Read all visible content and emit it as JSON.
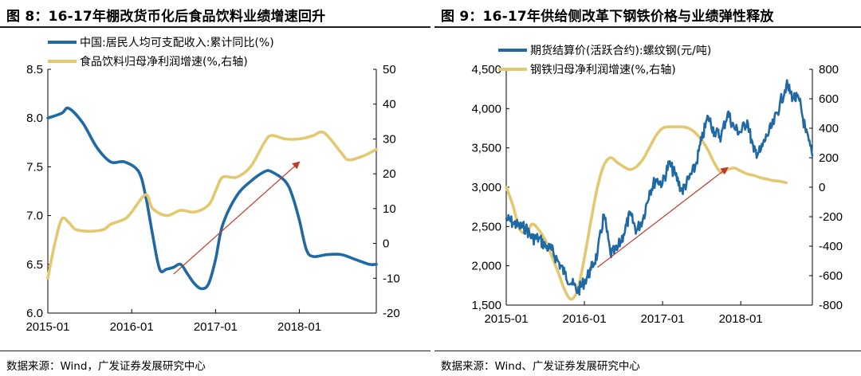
{
  "figures": [
    {
      "title": "图 8：16-17年棚改货币化后食品饮料业绩增速回升",
      "source": "数据来源：Wind，广发证券发展研究中心"
    },
    {
      "title": "图 9：16-17年供给侧改革下钢铁价格与业绩弹性释放",
      "source": "数据来源：Wind、广发证券发展研究中心"
    }
  ],
  "chart_data": [
    {
      "type": "line",
      "x_ticks": [
        "2015-01",
        "2016-01",
        "2017-01",
        "2018-01"
      ],
      "x_range": [
        "2015-01",
        "2018-12"
      ],
      "ylim": [
        6.0,
        8.5
      ],
      "y_ticks": [
        "6.0",
        "6.5",
        "7.0",
        "7.5",
        "8.0",
        "8.5"
      ],
      "y2lim": [
        -20,
        50
      ],
      "y2_ticks": [
        "-20",
        "-10",
        "0",
        "10",
        "20",
        "30",
        "40",
        "50"
      ],
      "legend_position": "top",
      "series": [
        {
          "name": "中国:居民人均可支配收入:累计同比(%)",
          "axis": "left",
          "color": "#1f6aa5",
          "points": [
            [
              "2015-01",
              8.0
            ],
            [
              "2015-03",
              8.05
            ],
            [
              "2015-04",
              8.1
            ],
            [
              "2015-06",
              7.95
            ],
            [
              "2015-08",
              7.7
            ],
            [
              "2015-10",
              7.55
            ],
            [
              "2015-12",
              7.55
            ],
            [
              "2016-02",
              7.45
            ],
            [
              "2016-03",
              7.2
            ],
            [
              "2016-04",
              6.8
            ],
            [
              "2016-05",
              6.45
            ],
            [
              "2016-06",
              6.45
            ],
            [
              "2016-07",
              6.47
            ],
            [
              "2016-08",
              6.5
            ],
            [
              "2016-09",
              6.4
            ],
            [
              "2016-10",
              6.3
            ],
            [
              "2016-11",
              6.25
            ],
            [
              "2016-12",
              6.3
            ],
            [
              "2017-01",
              6.55
            ],
            [
              "2017-02",
              6.9
            ],
            [
              "2017-04",
              7.2
            ],
            [
              "2017-06",
              7.35
            ],
            [
              "2017-08",
              7.45
            ],
            [
              "2017-09",
              7.45
            ],
            [
              "2017-11",
              7.35
            ],
            [
              "2017-12",
              7.2
            ],
            [
              "2018-01",
              6.95
            ],
            [
              "2018-02",
              6.65
            ],
            [
              "2018-03",
              6.58
            ],
            [
              "2018-05",
              6.6
            ],
            [
              "2018-07",
              6.6
            ],
            [
              "2018-09",
              6.55
            ],
            [
              "2018-11",
              6.5
            ],
            [
              "2018-12",
              6.5
            ]
          ]
        },
        {
          "name": "食品饮料归母净利润增速(%,右轴)",
          "axis": "right",
          "color": "#e3c86f",
          "points": [
            [
              "2015-01",
              -10
            ],
            [
              "2015-02",
              0
            ],
            [
              "2015-03",
              7
            ],
            [
              "2015-04",
              6
            ],
            [
              "2015-05",
              4
            ],
            [
              "2015-07",
              3.5
            ],
            [
              "2015-09",
              4
            ],
            [
              "2015-10",
              5.5
            ],
            [
              "2015-12",
              7
            ],
            [
              "2016-01",
              9
            ],
            [
              "2016-03",
              14
            ],
            [
              "2016-04",
              10
            ],
            [
              "2016-06",
              8
            ],
            [
              "2016-08",
              9.5
            ],
            [
              "2016-10",
              9
            ],
            [
              "2016-12",
              11
            ],
            [
              "2017-01",
              15
            ],
            [
              "2017-02",
              19
            ],
            [
              "2017-04",
              19
            ],
            [
              "2017-06",
              22
            ],
            [
              "2017-08",
              29
            ],
            [
              "2017-09",
              31
            ],
            [
              "2017-11",
              30
            ],
            [
              "2018-01",
              30
            ],
            [
              "2018-03",
              31
            ],
            [
              "2018-04",
              32
            ],
            [
              "2018-05",
              31
            ],
            [
              "2018-07",
              26
            ],
            [
              "2018-08",
              24
            ],
            [
              "2018-10",
              25
            ],
            [
              "2018-12",
              27
            ]
          ]
        }
      ],
      "annotation_arrow": {
        "from": [
          "2016-07",
          6.4
        ],
        "to": [
          "2018-01",
          7.55
        ],
        "color": "#c0392b"
      }
    },
    {
      "type": "line",
      "x_ticks": [
        "2015-01",
        "2016-01",
        "2017-01",
        "2018-01"
      ],
      "x_range": [
        "2015-01",
        "2018-12"
      ],
      "ylim": [
        1500,
        4500
      ],
      "y_ticks": [
        "1,500",
        "2,000",
        "2,500",
        "3,000",
        "3,500",
        "4,000",
        "4,500"
      ],
      "y2lim": [
        -800,
        800
      ],
      "y2_ticks": [
        "-800",
        "-600",
        "-400",
        "-200",
        "0",
        "200",
        "400",
        "600",
        "800"
      ],
      "legend_position": "top",
      "series": [
        {
          "name": "期货结算价(活跃合约):螺纹钢(元/吨)",
          "axis": "left",
          "color": "#1f6aa5",
          "noisy": true,
          "points": [
            [
              "2015-01",
              2600
            ],
            [
              "2015-02",
              2550
            ],
            [
              "2015-03",
              2500
            ],
            [
              "2015-04",
              2480
            ],
            [
              "2015-05",
              2350
            ],
            [
              "2015-06",
              2350
            ],
            [
              "2015-07",
              2250
            ],
            [
              "2015-08",
              2200
            ],
            [
              "2015-09",
              2050
            ],
            [
              "2015-10",
              1900
            ],
            [
              "2015-11",
              1780
            ],
            [
              "2015-12",
              1680
            ],
            [
              "2016-01",
              1800
            ],
            [
              "2016-02",
              1950
            ],
            [
              "2016-03",
              2150
            ],
            [
              "2016-04",
              2650
            ],
            [
              "2016-05",
              2150
            ],
            [
              "2016-06",
              2200
            ],
            [
              "2016-07",
              2400
            ],
            [
              "2016-08",
              2650
            ],
            [
              "2016-09",
              2450
            ],
            [
              "2016-10",
              2600
            ],
            [
              "2016-11",
              2950
            ],
            [
              "2016-12",
              3100
            ],
            [
              "2017-01",
              3050
            ],
            [
              "2017-02",
              3300
            ],
            [
              "2017-03",
              3150
            ],
            [
              "2017-04",
              2950
            ],
            [
              "2017-05",
              3100
            ],
            [
              "2017-06",
              3250
            ],
            [
              "2017-07",
              3600
            ],
            [
              "2017-08",
              3900
            ],
            [
              "2017-09",
              3700
            ],
            [
              "2017-10",
              3650
            ],
            [
              "2017-11",
              3950
            ],
            [
              "2017-12",
              3750
            ],
            [
              "2018-01",
              3700
            ],
            [
              "2018-02",
              3850
            ],
            [
              "2018-03",
              3450
            ],
            [
              "2018-04",
              3450
            ],
            [
              "2018-05",
              3650
            ],
            [
              "2018-06",
              3800
            ],
            [
              "2018-07",
              4050
            ],
            [
              "2018-08",
              4300
            ],
            [
              "2018-09",
              4150
            ],
            [
              "2018-10",
              4100
            ],
            [
              "2018-11",
              3700
            ],
            [
              "2018-12",
              3400
            ]
          ]
        },
        {
          "name": "钢铁归母净利润增速(%,右轴)",
          "axis": "right",
          "color": "#e3c86f",
          "points": [
            [
              "2015-01",
              0
            ],
            [
              "2015-02",
              -120
            ],
            [
              "2015-03",
              -280
            ],
            [
              "2015-04",
              -310
            ],
            [
              "2015-05",
              -250
            ],
            [
              "2015-06",
              -290
            ],
            [
              "2015-07",
              -360
            ],
            [
              "2015-08",
              -470
            ],
            [
              "2015-09",
              -580
            ],
            [
              "2015-10",
              -700
            ],
            [
              "2015-11",
              -760
            ],
            [
              "2015-12",
              -690
            ],
            [
              "2016-01",
              -480
            ],
            [
              "2016-02",
              -230
            ],
            [
              "2016-03",
              0
            ],
            [
              "2016-04",
              150
            ],
            [
              "2016-05",
              200
            ],
            [
              "2016-06",
              170
            ],
            [
              "2016-07",
              140
            ],
            [
              "2016-08",
              120
            ],
            [
              "2016-09",
              140
            ],
            [
              "2016-10",
              190
            ],
            [
              "2016-11",
              270
            ],
            [
              "2016-12",
              350
            ],
            [
              "2017-01",
              400
            ],
            [
              "2017-02",
              410
            ],
            [
              "2017-03",
              410
            ],
            [
              "2017-04",
              410
            ],
            [
              "2017-05",
              400
            ],
            [
              "2017-06",
              370
            ],
            [
              "2017-07",
              320
            ],
            [
              "2017-08",
              250
            ],
            [
              "2017-09",
              160
            ],
            [
              "2017-10",
              100
            ],
            [
              "2017-11",
              120
            ],
            [
              "2017-12",
              130
            ],
            [
              "2018-01",
              110
            ],
            [
              "2018-02",
              90
            ],
            [
              "2018-03",
              80
            ],
            [
              "2018-04",
              65
            ],
            [
              "2018-05",
              55
            ],
            [
              "2018-06",
              45
            ],
            [
              "2018-07",
              40
            ],
            [
              "2018-08",
              30
            ]
          ]
        }
      ],
      "annotation_arrow": {
        "from": [
          "2016-03",
          1980
        ],
        "to": [
          "2017-11",
          3250
        ],
        "color": "#c0392b"
      }
    }
  ]
}
